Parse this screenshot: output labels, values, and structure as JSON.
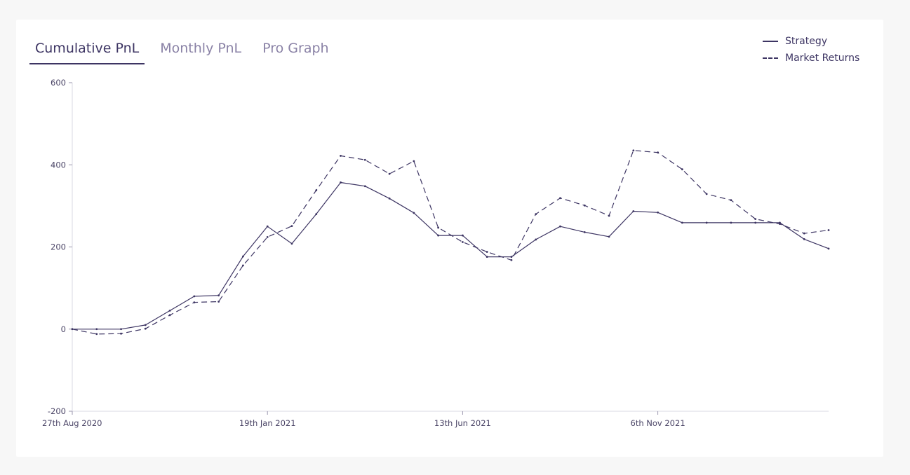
{
  "tabs": [
    {
      "label": "Cumulative PnL",
      "active": true
    },
    {
      "label": "Monthly PnL",
      "active": false
    },
    {
      "label": "Pro Graph",
      "active": false
    }
  ],
  "legend": [
    {
      "label": "Strategy",
      "style": "solid"
    },
    {
      "label": "Market Returns",
      "style": "dashed"
    }
  ],
  "colors": {
    "line": "#3d3563",
    "axis": "#d9d9e3",
    "background": "#ffffff",
    "page": "#f7f7f7"
  },
  "chart_data": {
    "type": "line",
    "ylim": [
      -200,
      600
    ],
    "yticks": [
      -200,
      0,
      200,
      400,
      600
    ],
    "xticks": [
      {
        "index": 0,
        "label": "27th Aug 2020"
      },
      {
        "index": 8,
        "label": "19th Jan 2021"
      },
      {
        "index": 16,
        "label": "13th Jun 2021"
      },
      {
        "index": 24,
        "label": "6th Nov 2021"
      }
    ],
    "series": [
      {
        "name": "Strategy",
        "style": "solid",
        "values": [
          0,
          0,
          0,
          10,
          45,
          80,
          82,
          177,
          250,
          208,
          280,
          357,
          348,
          318,
          283,
          228,
          228,
          176,
          176,
          218,
          250,
          236,
          225,
          287,
          284,
          259,
          259,
          259,
          259,
          259,
          219,
          196
        ]
      },
      {
        "name": "Market Returns",
        "style": "dashed",
        "values": [
          0,
          -12,
          -11,
          1,
          34,
          65,
          67,
          155,
          224,
          251,
          338,
          422,
          412,
          378,
          409,
          247,
          212,
          188,
          168,
          280,
          319,
          301,
          276,
          435,
          430,
          389,
          329,
          314,
          268,
          256,
          233,
          241
        ]
      }
    ]
  }
}
